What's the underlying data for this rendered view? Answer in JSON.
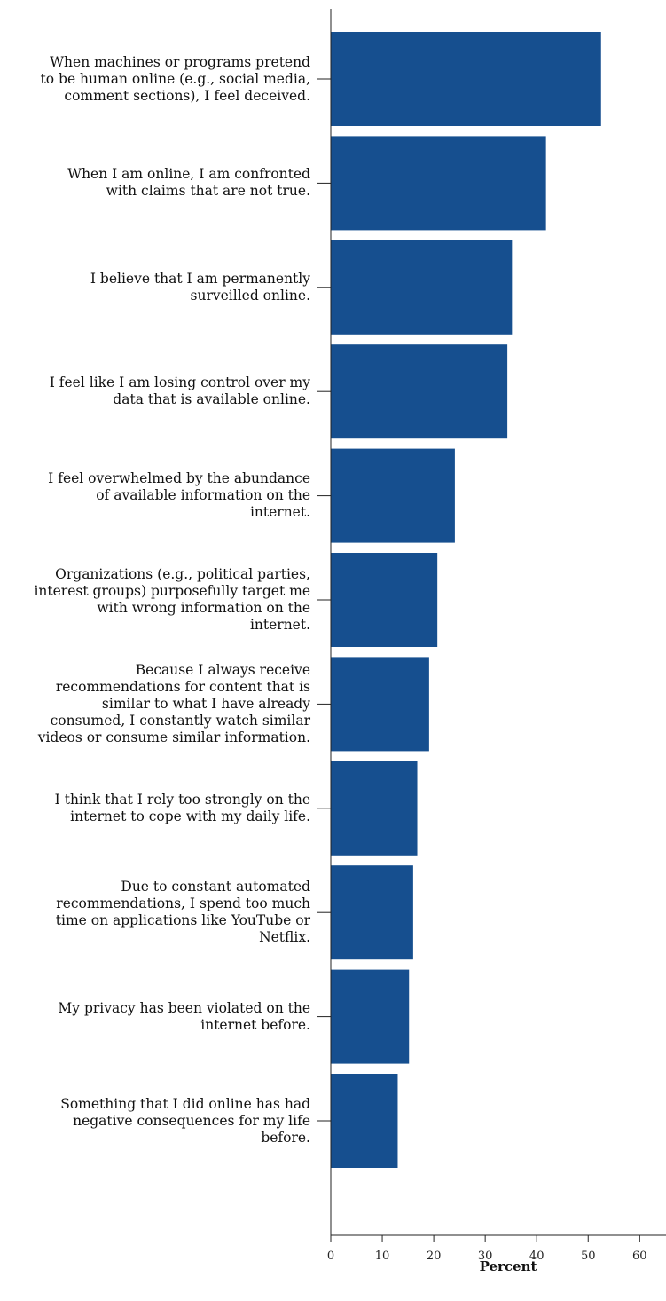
{
  "chart_data": {
    "type": "bar",
    "orientation": "horizontal",
    "title": "",
    "xlabel": "Percent",
    "ylabel": "",
    "xlim": [
      0,
      65
    ],
    "xticks": [
      0,
      10,
      20,
      30,
      40,
      50,
      60
    ],
    "grid": false,
    "bar_color": "#164f8f",
    "categories": [
      "When machines or programs pretend\nto be human online (e.g., social media,\ncomment sections), I feel deceived.",
      "When I am online, I am confronted\nwith claims that are not true.",
      "I believe that I am permanently\nsurveilled online.",
      "I feel like I am losing control over my\ndata that is available online.",
      "I feel overwhelmed by the abundance\nof available information on the\ninternet.",
      "Organizations (e.g., political parties,\ninterest groups) purposefully target me\nwith wrong information on the\ninternet.",
      "Because I always receive\nrecommendations for content that is\nsimilar to what I have already\nconsumed, I constantly watch similar\nvideos or consume similar information.",
      "I think that I rely too strongly on the\ninternet to cope with my daily life.",
      "Due to constant automated\nrecommendations, I spend too much\ntime on applications like YouTube or\nNetflix.",
      "My privacy has been violated on the\ninternet before.",
      "Something that I did online has had\nnegative consequences for my life\nbefore."
    ],
    "values": [
      52.5,
      41.8,
      35.2,
      34.3,
      24.1,
      20.7,
      19.1,
      16.8,
      16.0,
      15.2,
      13.0
    ]
  }
}
